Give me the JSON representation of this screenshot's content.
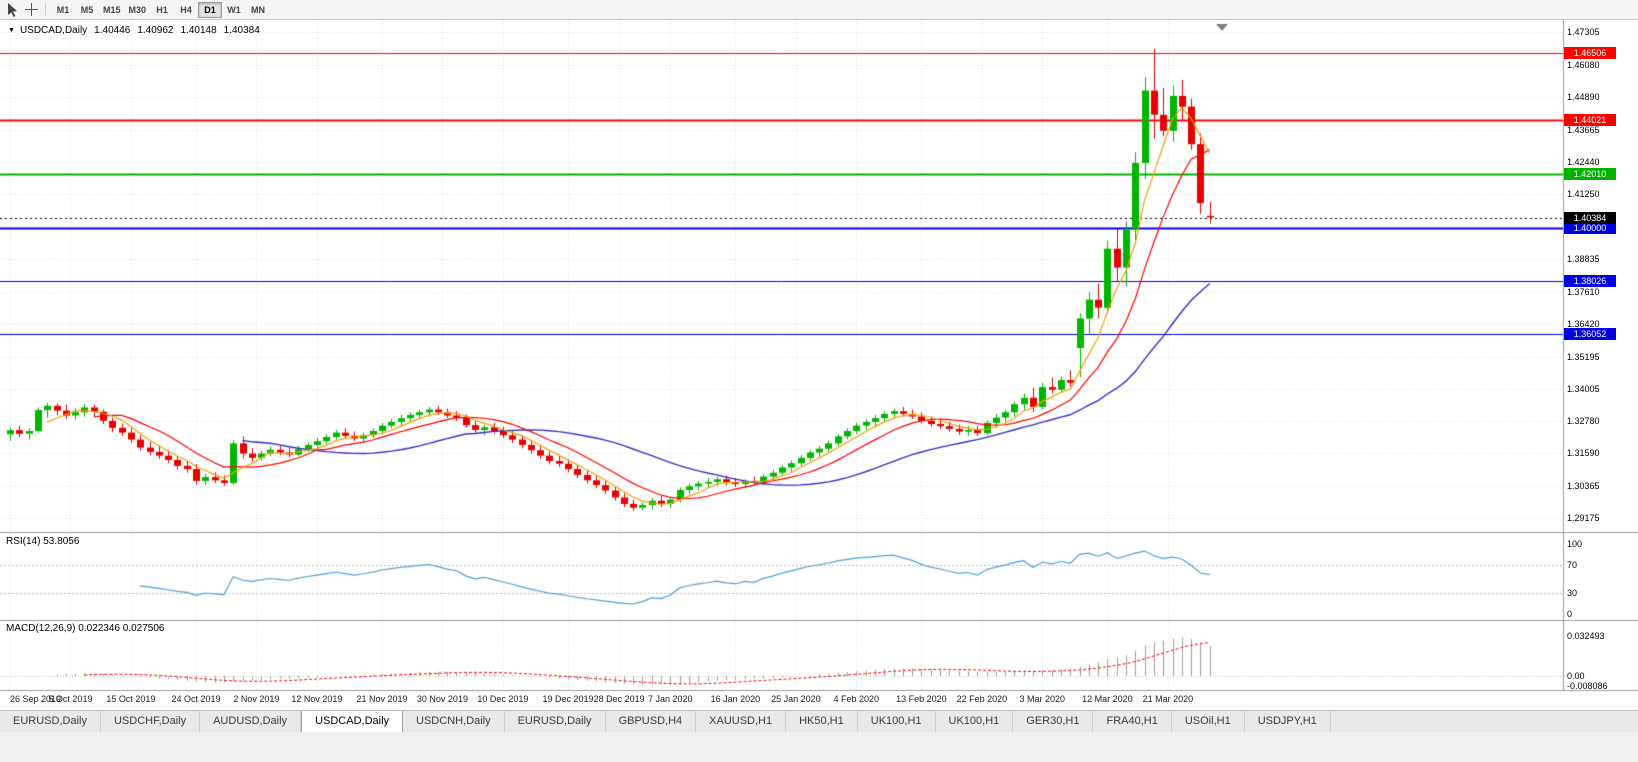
{
  "toolbar": {
    "timeframes": [
      "M1",
      "M5",
      "M15",
      "M30",
      "H1",
      "H4",
      "D1",
      "W1",
      "MN"
    ],
    "active_timeframe": "D1"
  },
  "chart_data": {
    "type": "candlestick",
    "symbol": "USDCAD",
    "timeframe": "Daily",
    "title": "USDCAD,Daily",
    "ohlc_display": {
      "open": "1.40446",
      "high": "1.40962",
      "low": "1.40148",
      "close": "1.40384"
    },
    "y_axis_labels": [
      "1.47305",
      "1.46080",
      "1.44890",
      "1.43665",
      "1.42440",
      "1.41250",
      "1.40025",
      "1.38835",
      "1.37610",
      "1.36420",
      "1.35195",
      "1.34005",
      "1.32780",
      "1.31590",
      "1.30365",
      "1.29175"
    ],
    "x_axis_labels": [
      {
        "label": "26 Sep 2019",
        "index": 0
      },
      {
        "label": "5 Oct 2019",
        "index": 6.5
      },
      {
        "label": "15 Oct 2019",
        "index": 13
      },
      {
        "label": "24 Oct 2019",
        "index": 20
      },
      {
        "label": "2 Nov 2019",
        "index": 26.5
      },
      {
        "label": "12 Nov 2019",
        "index": 33
      },
      {
        "label": "21 Nov 2019",
        "index": 40
      },
      {
        "label": "30 Nov 2019",
        "index": 46.5
      },
      {
        "label": "10 Dec 2019",
        "index": 53
      },
      {
        "label": "19 Dec 2019",
        "index": 60
      },
      {
        "label": "28 Dec 2019",
        "index": 65.5
      },
      {
        "label": "7 Jan 2020",
        "index": 71
      },
      {
        "label": "16 Jan 2020",
        "index": 78
      },
      {
        "label": "25 Jan 2020",
        "index": 84.5
      },
      {
        "label": "4 Feb 2020",
        "index": 91
      },
      {
        "label": "13 Feb 2020",
        "index": 98
      },
      {
        "label": "22 Feb 2020",
        "index": 104.5
      },
      {
        "label": "3 Mar 2020",
        "index": 111
      },
      {
        "label": "12 Mar 2020",
        "index": 118
      },
      {
        "label": "21 Mar 2020",
        "index": 124.5
      }
    ],
    "levels": [
      {
        "price": 1.46506,
        "label": "1.46506",
        "color": "#ff0000",
        "width": 1
      },
      {
        "price": 1.44021,
        "label": "1.44021",
        "color": "#ff0000",
        "width": 2
      },
      {
        "price": 1.4201,
        "label": "1.42010",
        "color": "#00b300",
        "width": 2
      },
      {
        "price": 1.4,
        "label": "1.40000",
        "color": "#0000e0",
        "width": 2
      },
      {
        "price": 1.38026,
        "label": "1.38026",
        "color": "#0000e0",
        "width": 1
      },
      {
        "price": 1.36052,
        "label": "1.36052",
        "color": "#0000e0",
        "width": 1
      }
    ],
    "current_price": {
      "price": 1.40384,
      "label": "1.40384",
      "color": "#000000"
    },
    "colors": {
      "up": "#00b500",
      "down": "#e60000",
      "grid": "#e0e0e0",
      "separator": "#9b9b9b"
    },
    "candles": [
      [
        1.323,
        1.3255,
        1.3205,
        1.3245
      ],
      [
        1.3245,
        1.3262,
        1.322,
        1.3232
      ],
      [
        1.3232,
        1.3252,
        1.321,
        1.3242
      ],
      [
        1.3242,
        1.333,
        1.3236,
        1.332
      ],
      [
        1.332,
        1.3347,
        1.329,
        1.3336
      ],
      [
        1.3336,
        1.3345,
        1.3302,
        1.3318
      ],
      [
        1.3318,
        1.334,
        1.3288,
        1.33
      ],
      [
        1.33,
        1.3327,
        1.3284,
        1.3312
      ],
      [
        1.3312,
        1.3342,
        1.3295,
        1.333
      ],
      [
        1.333,
        1.334,
        1.3298,
        1.3314
      ],
      [
        1.3314,
        1.3322,
        1.3268,
        1.328
      ],
      [
        1.328,
        1.3292,
        1.3238,
        1.3254
      ],
      [
        1.3254,
        1.327,
        1.3224,
        1.3236
      ],
      [
        1.3236,
        1.3252,
        1.3198,
        1.321
      ],
      [
        1.321,
        1.3226,
        1.3168,
        1.318
      ],
      [
        1.318,
        1.3202,
        1.3152,
        1.3164
      ],
      [
        1.3164,
        1.3186,
        1.3138,
        1.315
      ],
      [
        1.315,
        1.317,
        1.3122,
        1.3134
      ],
      [
        1.3134,
        1.315,
        1.3098,
        1.3112
      ],
      [
        1.3112,
        1.313,
        1.3086,
        1.31
      ],
      [
        1.31,
        1.3118,
        1.3042,
        1.3056
      ],
      [
        1.3056,
        1.3082,
        1.304,
        1.307
      ],
      [
        1.307,
        1.3088,
        1.3048,
        1.3058
      ],
      [
        1.3058,
        1.3076,
        1.3038,
        1.3048
      ],
      [
        1.3048,
        1.3208,
        1.3042,
        1.3196
      ],
      [
        1.3196,
        1.3222,
        1.314,
        1.3158
      ],
      [
        1.3158,
        1.3178,
        1.3128,
        1.3142
      ],
      [
        1.3142,
        1.3168,
        1.3132,
        1.3158
      ],
      [
        1.3158,
        1.3184,
        1.3148,
        1.3172
      ],
      [
        1.3172,
        1.319,
        1.3152,
        1.3162
      ],
      [
        1.3162,
        1.318,
        1.3144,
        1.3154
      ],
      [
        1.3154,
        1.3186,
        1.3148,
        1.3174
      ],
      [
        1.3174,
        1.32,
        1.3164,
        1.319
      ],
      [
        1.319,
        1.3216,
        1.3178,
        1.3204
      ],
      [
        1.3204,
        1.323,
        1.3194,
        1.322
      ],
      [
        1.322,
        1.3246,
        1.321,
        1.3236
      ],
      [
        1.3236,
        1.3252,
        1.3214,
        1.3224
      ],
      [
        1.3224,
        1.324,
        1.3204,
        1.3214
      ],
      [
        1.3214,
        1.3236,
        1.32,
        1.3226
      ],
      [
        1.3226,
        1.3252,
        1.3216,
        1.3242
      ],
      [
        1.3242,
        1.3272,
        1.3232,
        1.3262
      ],
      [
        1.3262,
        1.3288,
        1.3252,
        1.3276
      ],
      [
        1.3276,
        1.3302,
        1.3262,
        1.329
      ],
      [
        1.329,
        1.3312,
        1.3276,
        1.3302
      ],
      [
        1.3302,
        1.3322,
        1.3286,
        1.3312
      ],
      [
        1.3312,
        1.3332,
        1.3296,
        1.3322
      ],
      [
        1.3322,
        1.3336,
        1.3302,
        1.3312
      ],
      [
        1.3312,
        1.3326,
        1.329,
        1.33
      ],
      [
        1.33,
        1.3316,
        1.328,
        1.3292
      ],
      [
        1.3292,
        1.3304,
        1.3254,
        1.3264
      ],
      [
        1.3264,
        1.3278,
        1.3236,
        1.3246
      ],
      [
        1.3246,
        1.3266,
        1.3226,
        1.3256
      ],
      [
        1.3256,
        1.3272,
        1.3232,
        1.3242
      ],
      [
        1.3242,
        1.3258,
        1.3216,
        1.3226
      ],
      [
        1.3226,
        1.3242,
        1.3198,
        1.321
      ],
      [
        1.321,
        1.3226,
        1.3178,
        1.319
      ],
      [
        1.319,
        1.3206,
        1.3158,
        1.317
      ],
      [
        1.317,
        1.3186,
        1.3138,
        1.315
      ],
      [
        1.315,
        1.3166,
        1.3118,
        1.313
      ],
      [
        1.313,
        1.3152,
        1.3108,
        1.312
      ],
      [
        1.312,
        1.3136,
        1.3088,
        1.31
      ],
      [
        1.31,
        1.3116,
        1.3066,
        1.3078
      ],
      [
        1.3078,
        1.3094,
        1.3046,
        1.3058
      ],
      [
        1.3058,
        1.3074,
        1.3028,
        1.304
      ],
      [
        1.304,
        1.3056,
        1.3008,
        1.302
      ],
      [
        1.302,
        1.3036,
        1.2982,
        1.2994
      ],
      [
        1.2994,
        1.301,
        1.2958,
        1.297
      ],
      [
        1.297,
        1.2986,
        1.2944,
        1.2956
      ],
      [
        1.2956,
        1.2976,
        1.2946,
        1.2966
      ],
      [
        1.2966,
        1.2992,
        1.295,
        1.2982
      ],
      [
        1.2982,
        1.3,
        1.2958,
        1.297
      ],
      [
        1.297,
        1.2996,
        1.2954,
        1.2986
      ],
      [
        1.2986,
        1.3032,
        1.2976,
        1.3022
      ],
      [
        1.3022,
        1.3046,
        1.3006,
        1.3036
      ],
      [
        1.3036,
        1.3056,
        1.302,
        1.3046
      ],
      [
        1.3046,
        1.3066,
        1.303,
        1.3052
      ],
      [
        1.3052,
        1.3072,
        1.3036,
        1.3062
      ],
      [
        1.3062,
        1.3076,
        1.304,
        1.305
      ],
      [
        1.305,
        1.3066,
        1.3034,
        1.3044
      ],
      [
        1.3044,
        1.3062,
        1.3028,
        1.3056
      ],
      [
        1.3056,
        1.3072,
        1.304,
        1.305
      ],
      [
        1.305,
        1.3082,
        1.304,
        1.3072
      ],
      [
        1.3072,
        1.3098,
        1.3056,
        1.3086
      ],
      [
        1.3086,
        1.3116,
        1.3076,
        1.3106
      ],
      [
        1.3106,
        1.3132,
        1.309,
        1.3122
      ],
      [
        1.3122,
        1.3152,
        1.3112,
        1.3142
      ],
      [
        1.3142,
        1.3172,
        1.313,
        1.3162
      ],
      [
        1.3162,
        1.3186,
        1.3146,
        1.3176
      ],
      [
        1.3176,
        1.3206,
        1.3164,
        1.3196
      ],
      [
        1.3196,
        1.3232,
        1.3186,
        1.3222
      ],
      [
        1.3222,
        1.3252,
        1.3212,
        1.3242
      ],
      [
        1.3242,
        1.3272,
        1.323,
        1.3262
      ],
      [
        1.3262,
        1.3286,
        1.3246,
        1.3276
      ],
      [
        1.3276,
        1.3302,
        1.326,
        1.329
      ],
      [
        1.329,
        1.3316,
        1.3276,
        1.3306
      ],
      [
        1.3306,
        1.3326,
        1.329,
        1.3316
      ],
      [
        1.3316,
        1.3332,
        1.3296,
        1.3306
      ],
      [
        1.3306,
        1.3322,
        1.3286,
        1.3296
      ],
      [
        1.3296,
        1.3312,
        1.327,
        1.328
      ],
      [
        1.328,
        1.3296,
        1.3258,
        1.3268
      ],
      [
        1.3268,
        1.3286,
        1.325,
        1.326
      ],
      [
        1.326,
        1.3276,
        1.324,
        1.325
      ],
      [
        1.325,
        1.3266,
        1.3228,
        1.324
      ],
      [
        1.324,
        1.3262,
        1.3224,
        1.3246
      ],
      [
        1.3246,
        1.326,
        1.3224,
        1.3234
      ],
      [
        1.3234,
        1.3282,
        1.3226,
        1.3272
      ],
      [
        1.3272,
        1.3306,
        1.3256,
        1.3292
      ],
      [
        1.3292,
        1.3322,
        1.3276,
        1.3312
      ],
      [
        1.3312,
        1.3352,
        1.3296,
        1.3342
      ],
      [
        1.3342,
        1.3382,
        1.332,
        1.3366
      ],
      [
        1.3366,
        1.3402,
        1.3312,
        1.3332
      ],
      [
        1.3332,
        1.3422,
        1.3322,
        1.3406
      ],
      [
        1.3406,
        1.3442,
        1.3382,
        1.3396
      ],
      [
        1.3396,
        1.3446,
        1.3386,
        1.3432
      ],
      [
        1.3432,
        1.3468,
        1.3408,
        1.3422
      ],
      [
        1.3552,
        1.3682,
        1.3442,
        1.3662
      ],
      [
        1.3662,
        1.3762,
        1.3602,
        1.3732
      ],
      [
        1.3732,
        1.3792,
        1.3662,
        1.3702
      ],
      [
        1.3702,
        1.3952,
        1.3682,
        1.3922
      ],
      [
        1.3922,
        1.3996,
        1.3802,
        1.3852
      ],
      [
        1.3852,
        1.4022,
        1.3782,
        1.3992
      ],
      [
        1.3992,
        1.4282,
        1.3952,
        1.4242
      ],
      [
        1.4242,
        1.4562,
        1.4182,
        1.4512
      ],
      [
        1.4512,
        1.4668,
        1.4332,
        1.4422
      ],
      [
        1.4422,
        1.4522,
        1.4342,
        1.4362
      ],
      [
        1.4362,
        1.4532,
        1.4322,
        1.4492
      ],
      [
        1.4492,
        1.4552,
        1.4402,
        1.4452
      ],
      [
        1.4452,
        1.4482,
        1.4292,
        1.4312
      ],
      [
        1.4312,
        1.4352,
        1.4052,
        1.4092
      ],
      [
        1.40446,
        1.40962,
        1.40148,
        1.40384
      ]
    ],
    "indicators": {
      "ma_fast": {
        "type": "sma",
        "period": 5,
        "color": "#f0a000"
      },
      "ma_mid": {
        "type": "sma",
        "period": 10,
        "color": "#ff0000"
      },
      "ma_slow": {
        "type": "sma",
        "period": 26,
        "color": "#3030cc"
      },
      "rsi": {
        "period": 14,
        "label": "RSI(14) 53.8056",
        "color": "#4f9fd9",
        "levels": [
          70,
          30
        ],
        "axis_labels": [
          "100",
          "70",
          "30",
          "0"
        ],
        "range": [
          0,
          100
        ]
      },
      "macd": {
        "fast": 12,
        "slow": 26,
        "signal": 9,
        "label": "MACD(12,26,9) 0.022346 0.027506",
        "histogram_color": "#9c9c9c",
        "signal_color": "#ff0000",
        "axis_labels": [
          "0.032493",
          "0.00",
          "-0.008086"
        ],
        "range": [
          -0.008086,
          0.032493
        ]
      }
    }
  },
  "tabbar": {
    "tabs": [
      "EURUSD,Daily",
      "USDCHF,Daily",
      "AUDUSD,Daily",
      "USDCAD,Daily",
      "USDCNH,Daily",
      "EURUSD,Daily",
      "GBPUSD,H4",
      "XAUUSD,H1",
      "HK50,H1",
      "UK100,H1",
      "UK100,H1",
      "GER30,H1",
      "FRA40,H1",
      "USOil,H1",
      "USDJPY,H1"
    ],
    "active_index": 3
  }
}
